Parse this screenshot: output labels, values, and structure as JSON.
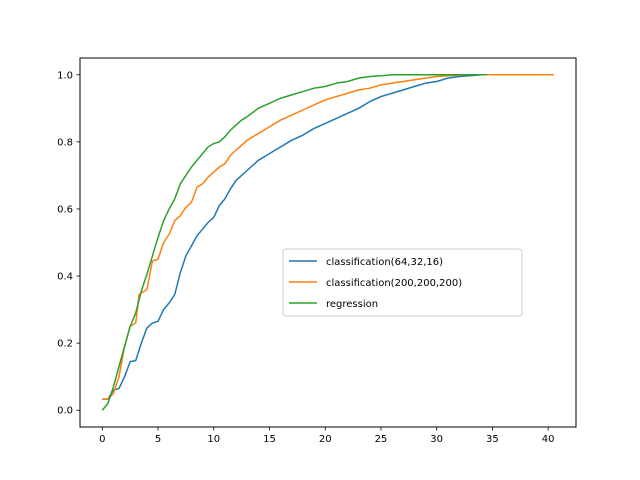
{
  "chart_data": {
    "type": "line",
    "title": "",
    "xlabel": "",
    "ylabel": "",
    "xlim": [
      -2.0,
      42.5
    ],
    "ylim": [
      -0.05,
      1.05
    ],
    "x_ticks": [
      0,
      5,
      10,
      15,
      20,
      25,
      30,
      35,
      40
    ],
    "y_ticks": [
      0.0,
      0.2,
      0.4,
      0.6,
      0.8,
      1.0
    ],
    "x_tick_labels": [
      "0",
      "5",
      "10",
      "15",
      "20",
      "25",
      "30",
      "35",
      "40"
    ],
    "y_tick_labels": [
      "0.0",
      "0.2",
      "0.4",
      "0.6",
      "0.8",
      "1.0"
    ],
    "grid": false,
    "legend_position": "center-right",
    "series": [
      {
        "name": "classification(64,32,16)",
        "color": "#1f77b4",
        "points": [
          [
            0,
            0.033
          ],
          [
            0.5,
            0.033
          ],
          [
            1,
            0.06
          ],
          [
            1.5,
            0.065
          ],
          [
            2,
            0.1
          ],
          [
            2.5,
            0.145
          ],
          [
            3,
            0.148
          ],
          [
            3.5,
            0.2
          ],
          [
            4,
            0.245
          ],
          [
            4.5,
            0.26
          ],
          [
            5,
            0.265
          ],
          [
            5.5,
            0.3
          ],
          [
            6,
            0.32
          ],
          [
            6.5,
            0.345
          ],
          [
            7,
            0.41
          ],
          [
            7.5,
            0.46
          ],
          [
            8,
            0.49
          ],
          [
            8.5,
            0.52
          ],
          [
            9,
            0.54
          ],
          [
            9.5,
            0.56
          ],
          [
            10,
            0.575
          ],
          [
            10.5,
            0.61
          ],
          [
            11,
            0.63
          ],
          [
            11.5,
            0.66
          ],
          [
            12,
            0.685
          ],
          [
            12.5,
            0.7
          ],
          [
            13,
            0.715
          ],
          [
            13.5,
            0.73
          ],
          [
            14,
            0.745
          ],
          [
            14.5,
            0.755
          ],
          [
            15,
            0.765
          ],
          [
            16,
            0.785
          ],
          [
            17,
            0.805
          ],
          [
            18,
            0.82
          ],
          [
            19,
            0.84
          ],
          [
            20,
            0.855
          ],
          [
            21,
            0.87
          ],
          [
            22,
            0.885
          ],
          [
            23,
            0.9
          ],
          [
            24,
            0.92
          ],
          [
            25,
            0.935
          ],
          [
            26,
            0.945
          ],
          [
            27,
            0.955
          ],
          [
            28,
            0.965
          ],
          [
            29,
            0.975
          ],
          [
            30,
            0.98
          ],
          [
            31,
            0.99
          ],
          [
            32,
            0.995
          ],
          [
            33,
            0.997
          ],
          [
            34,
            1.0
          ],
          [
            34.5,
            1.0
          ]
        ]
      },
      {
        "name": "classification(200,200,200)",
        "color": "#ff7f0e",
        "points": [
          [
            0,
            0.033
          ],
          [
            0.5,
            0.033
          ],
          [
            1,
            0.05
          ],
          [
            1.5,
            0.1
          ],
          [
            2,
            0.19
          ],
          [
            2.5,
            0.25
          ],
          [
            3,
            0.26
          ],
          [
            3.3,
            0.345
          ],
          [
            4,
            0.36
          ],
          [
            4.5,
            0.445
          ],
          [
            5,
            0.45
          ],
          [
            5.5,
            0.5
          ],
          [
            6,
            0.525
          ],
          [
            6.5,
            0.565
          ],
          [
            7,
            0.58
          ],
          [
            7.5,
            0.605
          ],
          [
            8,
            0.62
          ],
          [
            8.5,
            0.665
          ],
          [
            9,
            0.675
          ],
          [
            9.5,
            0.695
          ],
          [
            10,
            0.71
          ],
          [
            10.5,
            0.725
          ],
          [
            11,
            0.735
          ],
          [
            11.5,
            0.76
          ],
          [
            12,
            0.775
          ],
          [
            12.5,
            0.79
          ],
          [
            13,
            0.805
          ],
          [
            14,
            0.825
          ],
          [
            15,
            0.845
          ],
          [
            16,
            0.865
          ],
          [
            17,
            0.88
          ],
          [
            18,
            0.895
          ],
          [
            19,
            0.91
          ],
          [
            20,
            0.925
          ],
          [
            21,
            0.935
          ],
          [
            22,
            0.945
          ],
          [
            23,
            0.955
          ],
          [
            24,
            0.96
          ],
          [
            25,
            0.97
          ],
          [
            26,
            0.975
          ],
          [
            27,
            0.98
          ],
          [
            28,
            0.985
          ],
          [
            29,
            0.99
          ],
          [
            30,
            0.995
          ],
          [
            31,
            0.997
          ],
          [
            33,
            1.0
          ],
          [
            36,
            1.0
          ],
          [
            40.5,
            1.0
          ]
        ]
      },
      {
        "name": "regression",
        "color": "#2ca02c",
        "points": [
          [
            0,
            0.0
          ],
          [
            0.5,
            0.02
          ],
          [
            1,
            0.07
          ],
          [
            1.5,
            0.13
          ],
          [
            2,
            0.19
          ],
          [
            2.5,
            0.25
          ],
          [
            3,
            0.29
          ],
          [
            3.5,
            0.355
          ],
          [
            4,
            0.405
          ],
          [
            4.5,
            0.46
          ],
          [
            5,
            0.515
          ],
          [
            5.5,
            0.565
          ],
          [
            6,
            0.6
          ],
          [
            6.5,
            0.63
          ],
          [
            7,
            0.675
          ],
          [
            7.5,
            0.7
          ],
          [
            8,
            0.725
          ],
          [
            8.5,
            0.745
          ],
          [
            9,
            0.765
          ],
          [
            9.5,
            0.785
          ],
          [
            10,
            0.795
          ],
          [
            10.5,
            0.8
          ],
          [
            11,
            0.815
          ],
          [
            11.5,
            0.835
          ],
          [
            12,
            0.85
          ],
          [
            12.5,
            0.865
          ],
          [
            13,
            0.875
          ],
          [
            14,
            0.9
          ],
          [
            15,
            0.915
          ],
          [
            16,
            0.93
          ],
          [
            17,
            0.94
          ],
          [
            18,
            0.95
          ],
          [
            19,
            0.96
          ],
          [
            20,
            0.965
          ],
          [
            21,
            0.975
          ],
          [
            22,
            0.98
          ],
          [
            23,
            0.99
          ],
          [
            24,
            0.995
          ],
          [
            25,
            0.997
          ],
          [
            26,
            1.0
          ],
          [
            30,
            1.0
          ],
          [
            34.5,
            1.0
          ]
        ]
      }
    ]
  }
}
